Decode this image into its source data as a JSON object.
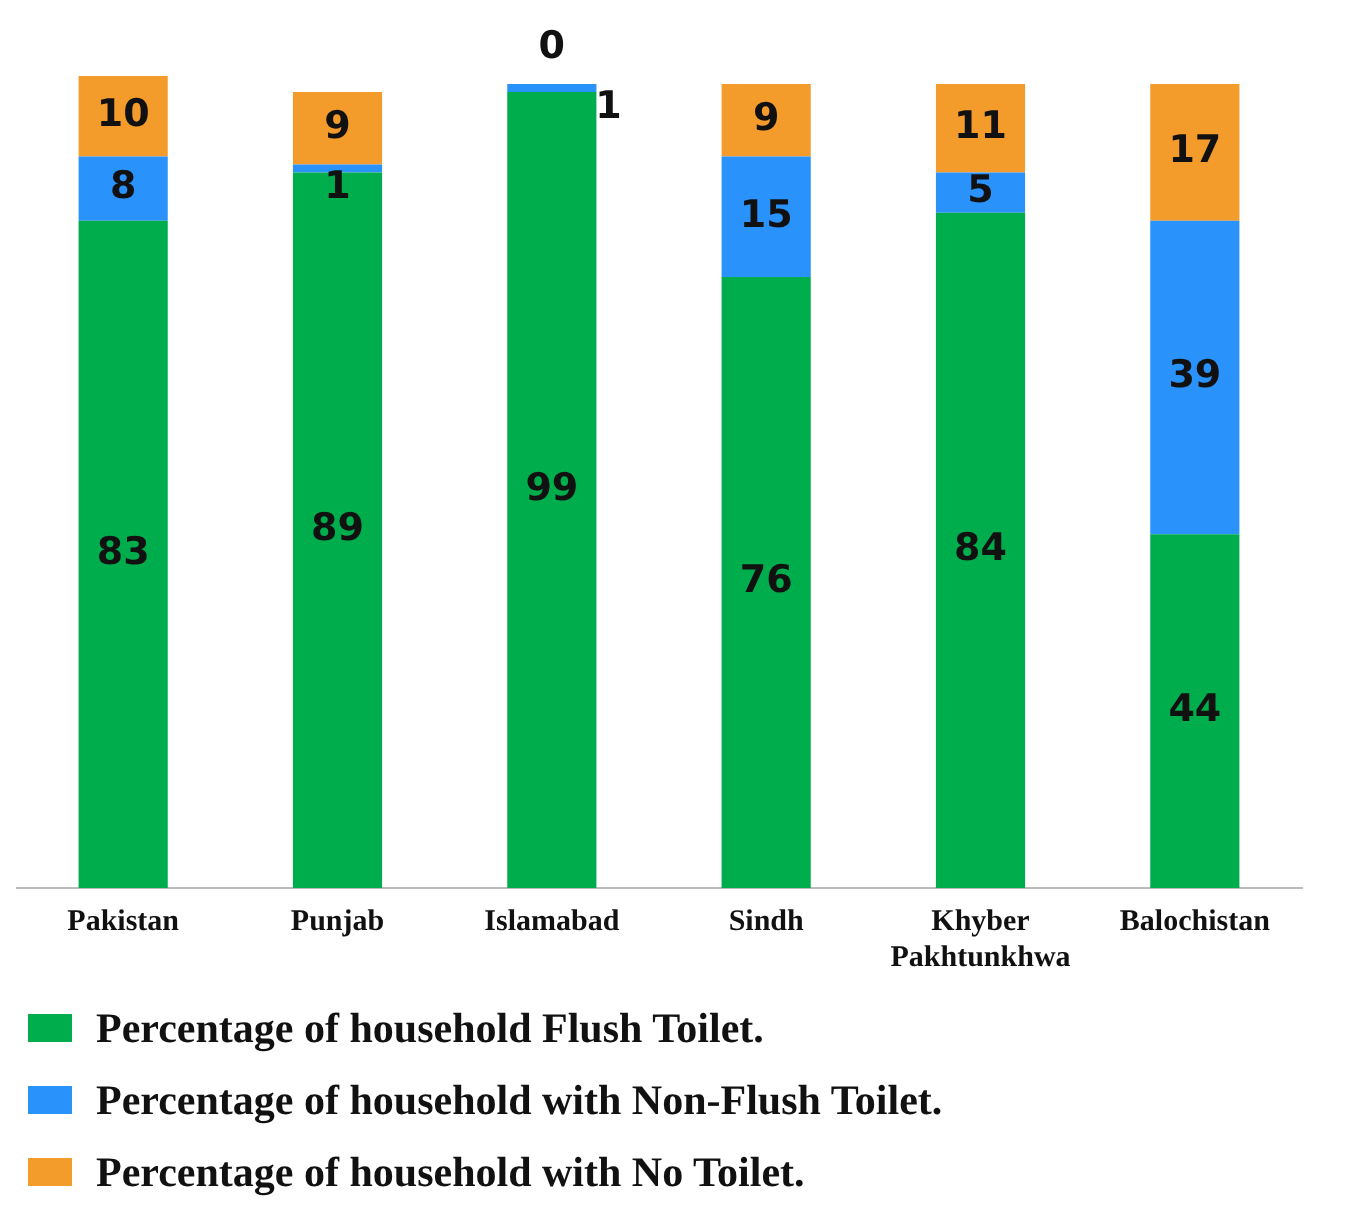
{
  "chart_data": {
    "type": "bar",
    "stacked": true,
    "categories": [
      "Pakistan",
      "Punjab",
      "Islamabad",
      "Sindh",
      "Khyber Pakhtunkhwa",
      "Balochistan"
    ],
    "series": [
      {
        "name": "Percentage of household Flush Toilet.",
        "color": "#00ad4d",
        "values": [
          83,
          89,
          99,
          76,
          84,
          44
        ]
      },
      {
        "name": "Percentage of household with Non-Flush Toilet.",
        "color": "#2a92fb",
        "values": [
          8,
          1,
          1,
          15,
          5,
          39
        ]
      },
      {
        "name": "Percentage of household with No Toilet.",
        "color": "#f39c2c",
        "values": [
          10,
          9,
          0,
          9,
          11,
          17
        ]
      }
    ],
    "data_labels": true,
    "grid": false,
    "legend": "bottom"
  }
}
